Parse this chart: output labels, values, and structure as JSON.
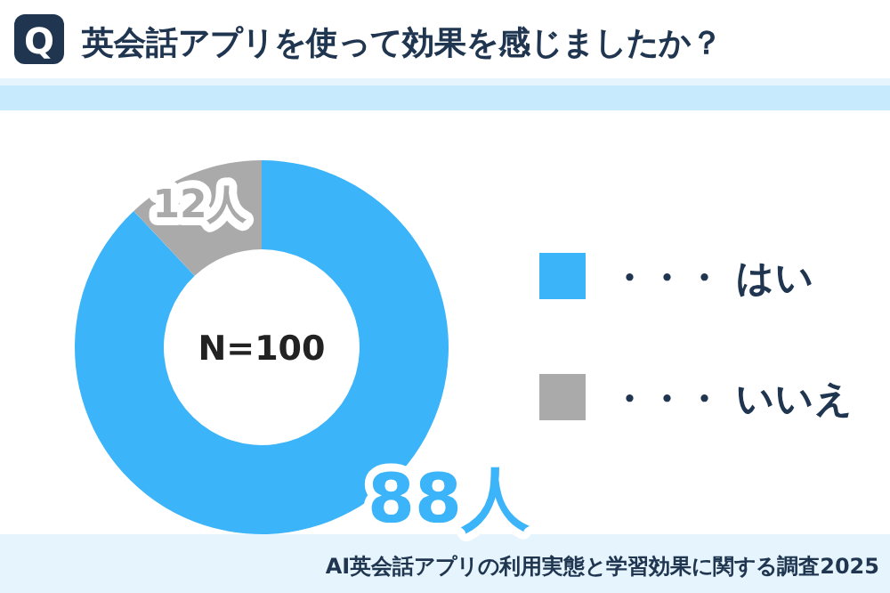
{
  "chart_data": {
    "type": "donut",
    "title": "英会話アプリを使って効果を感じましたか？",
    "categories": [
      "・・・ はい",
      "・・・ いいえ"
    ],
    "values": [
      88,
      12
    ],
    "colors": [
      "#3bb4f9",
      "#aaaaaa"
    ],
    "value_labels": [
      "88人",
      "12人"
    ],
    "legend": "right",
    "annotations": [
      "Q",
      "N=100",
      "AI英会話アプリの利用実態と学習効果に関する調査2025"
    ]
  }
}
